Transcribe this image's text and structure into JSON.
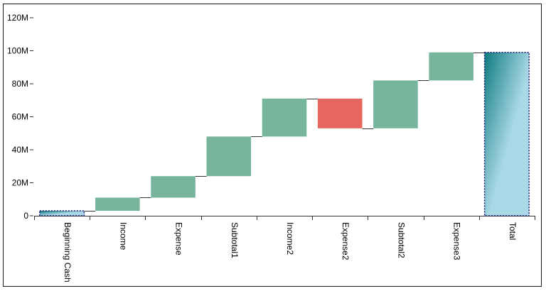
{
  "chart_data": {
    "type": "waterfall",
    "title": "",
    "xlabel": "",
    "ylabel": "",
    "ylim": [
      0,
      120000000
    ],
    "yticks": [
      0,
      20000000,
      40000000,
      60000000,
      80000000,
      100000000,
      120000000
    ],
    "ytick_labels": [
      "0",
      "20M",
      "40M",
      "60M",
      "80M",
      "100M",
      "120M"
    ],
    "categories": [
      "Beginning Cash",
      "Income",
      "Expense",
      "Subtotal1",
      "Income2",
      "Expense2",
      "Subtotal2",
      "Expense3",
      "Total"
    ],
    "bars": [
      {
        "label": "Beginning Cash",
        "kind": "total",
        "start": 0,
        "end": 3000000
      },
      {
        "label": "Income",
        "kind": "increase",
        "start": 3000000,
        "end": 11000000
      },
      {
        "label": "Expense",
        "kind": "increase",
        "start": 11000000,
        "end": 24000000
      },
      {
        "label": "Subtotal1",
        "kind": "increase",
        "start": 24000000,
        "end": 48000000
      },
      {
        "label": "Income2",
        "kind": "increase",
        "start": 48000000,
        "end": 71000000
      },
      {
        "label": "Expense2",
        "kind": "decrease",
        "start": 71000000,
        "end": 53000000
      },
      {
        "label": "Subtotal2",
        "kind": "increase",
        "start": 53000000,
        "end": 82000000
      },
      {
        "label": "Expense3",
        "kind": "increase",
        "start": 82000000,
        "end": 99000000
      },
      {
        "label": "Total",
        "kind": "total",
        "start": 0,
        "end": 99000000
      }
    ],
    "colors": {
      "increase": "#76b59c",
      "decrease": "#e5675f",
      "total_light": "#a9d8e6",
      "total_dark": "#0e7b80",
      "total_border": "#1a1a6e",
      "connector": "#333333",
      "axis": "#333333"
    },
    "grid": false,
    "legend": "none"
  }
}
